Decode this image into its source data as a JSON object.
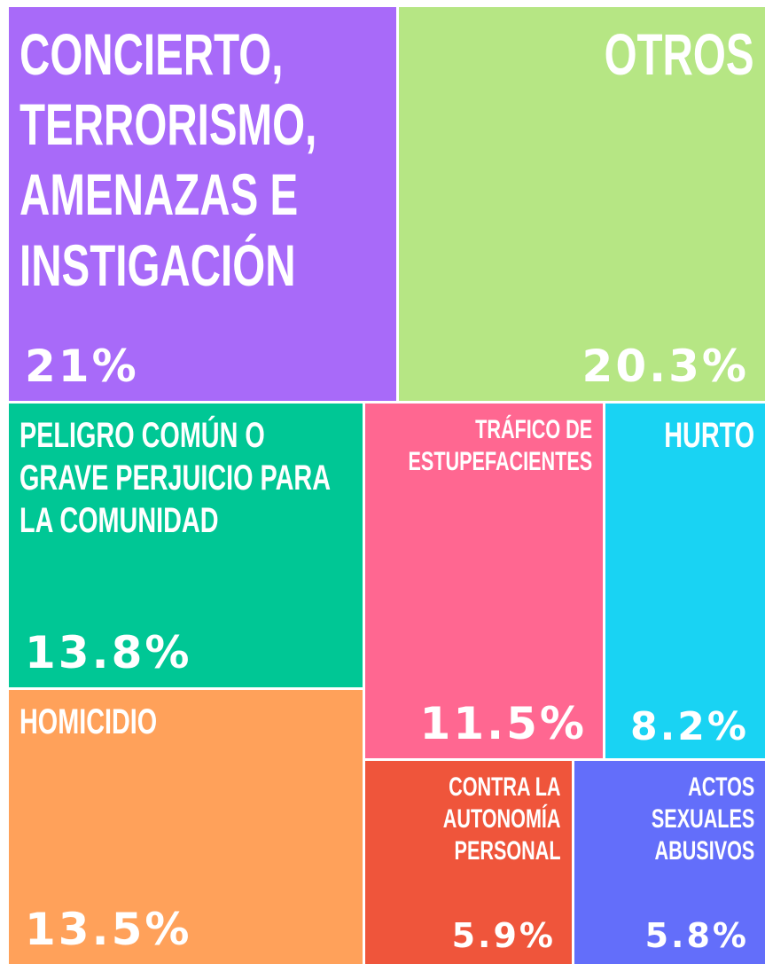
{
  "chart_data": {
    "type": "treemap",
    "categories": [
      "CONCIERTO, TERRORISMO, AMENAZAS E INSTIGACIÓN",
      "OTROS",
      "PELIGRO COMÚN O GRAVE PERJUICIO PARA LA COMUNIDAD",
      "TRÁFICO DE ESTUPEFACIENTES",
      "HURTO",
      "HOMICIDIO",
      "CONTRA LA AUTONOMÍA PERSONAL",
      "ACTOS SEXUALES ABUSIVOS"
    ],
    "values": [
      21,
      20.3,
      13.8,
      11.5,
      8.2,
      13.5,
      5.9,
      5.8
    ],
    "value_labels": [
      "21%",
      "20.3%",
      "13.8%",
      "11.5%",
      "8.2%",
      "13.5%",
      "5.9%",
      "5.8%"
    ],
    "colors": [
      "#a86af9",
      "#b6e684",
      "#00c795",
      "#ff6791",
      "#19d3f3",
      "#ffa15a",
      "#ef553b",
      "#636efa"
    ]
  }
}
